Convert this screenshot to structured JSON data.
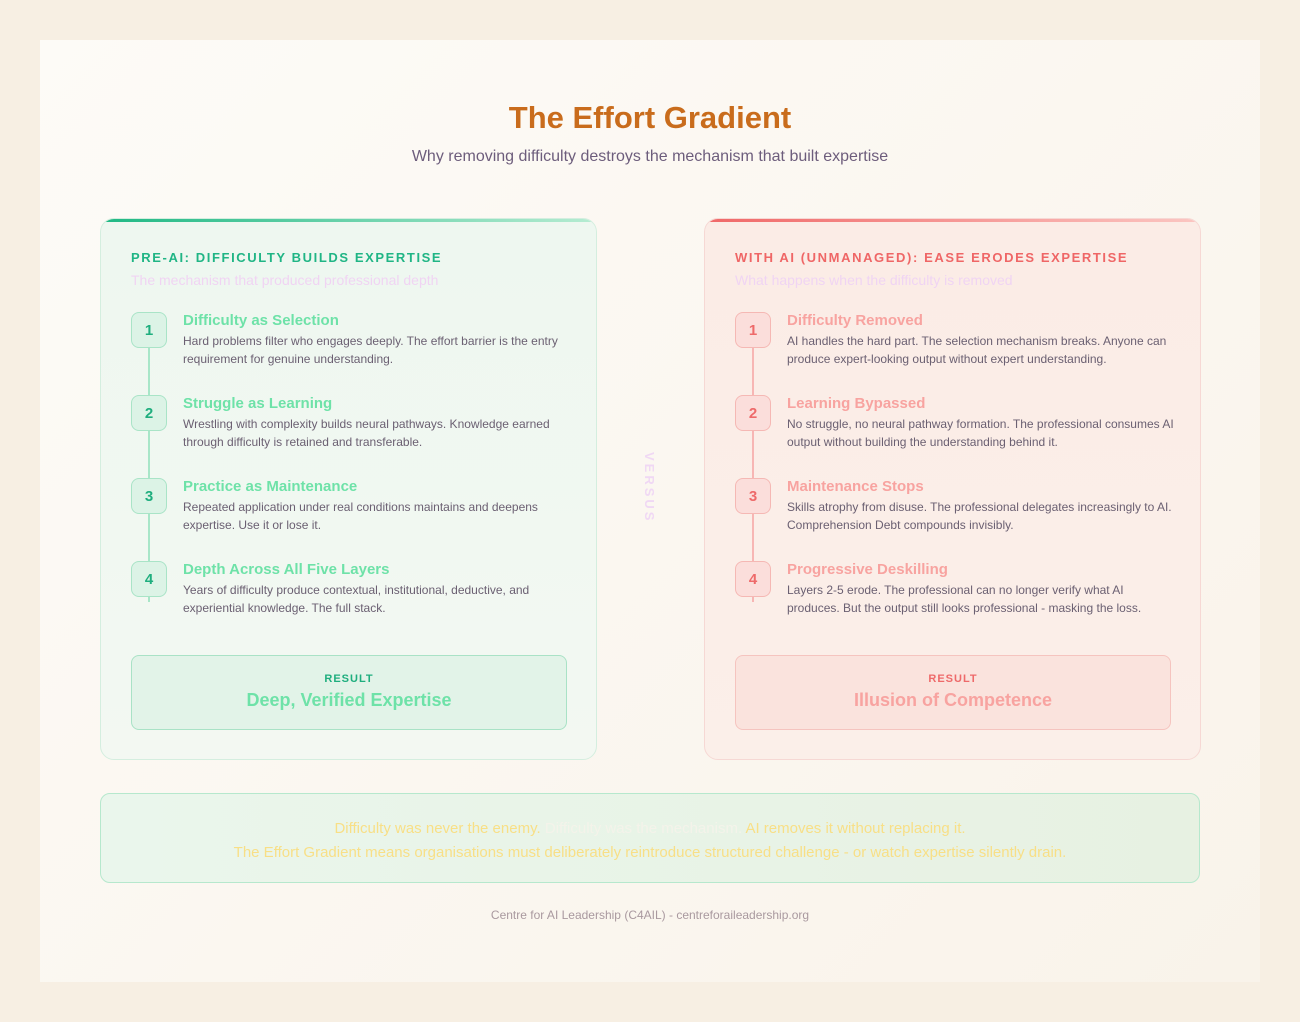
{
  "header": {
    "title": "The Effort Gradient",
    "subtitle": "Why removing difficulty destroys the mechanism that built expertise"
  },
  "pre": {
    "heading": "PRE-AI: DIFFICULTY BUILDS EXPERTISE",
    "sub": "The mechanism that produced professional depth",
    "steps": [
      {
        "n": "1",
        "title": "Difficulty as Selection",
        "desc": "Hard problems filter who engages deeply. The effort barrier is the entry requirement for genuine understanding."
      },
      {
        "n": "2",
        "title": "Struggle as Learning",
        "desc": "Wrestling with complexity builds neural pathways. Knowledge earned through difficulty is retained and transferable."
      },
      {
        "n": "3",
        "title": "Practice as Maintenance",
        "desc": "Repeated application under real conditions maintains and deepens expertise. Use it or lose it."
      },
      {
        "n": "4",
        "title": "Depth Across All Five Layers",
        "desc": "Years of difficulty produce contextual, institutional, deductive, and experiential knowledge. The full stack."
      }
    ],
    "result_label": "RESULT",
    "result": "Deep, Verified Expertise"
  },
  "ai": {
    "heading": "WITH AI (UNMANAGED): EASE ERODES EXPERTISE",
    "sub": "What happens when the difficulty is removed",
    "steps": [
      {
        "n": "1",
        "title": "Difficulty Removed",
        "desc": "AI handles the hard part. The selection mechanism breaks. Anyone can produce expert-looking output without expert understanding."
      },
      {
        "n": "2",
        "title": "Learning Bypassed",
        "desc": "No struggle, no neural pathway formation. The professional consumes AI output without building the understanding behind it."
      },
      {
        "n": "3",
        "title": "Maintenance Stops",
        "desc": "Skills atrophy from disuse. The professional delegates increasingly to AI. Comprehension Debt compounds invisibly."
      },
      {
        "n": "4",
        "title": "Progressive Deskilling",
        "desc": "Layers 2-5 erode. The professional can no longer verify what AI produces. But the output still looks professional - masking the loss."
      }
    ],
    "result_label": "RESULT",
    "result": "Illusion of Competence"
  },
  "versus": "VERSUS",
  "banner": {
    "a": "Difficulty was never the enemy. ",
    "b": "Difficulty was the mechanism.",
    "c": " AI removes it without replacing it.",
    "line2": "The Effort Gradient means organisations must deliberately reintroduce structured challenge - or watch expertise silently drain."
  },
  "footer": "Centre for AI Leadership (C4AIL) - centreforaileadership.org"
}
